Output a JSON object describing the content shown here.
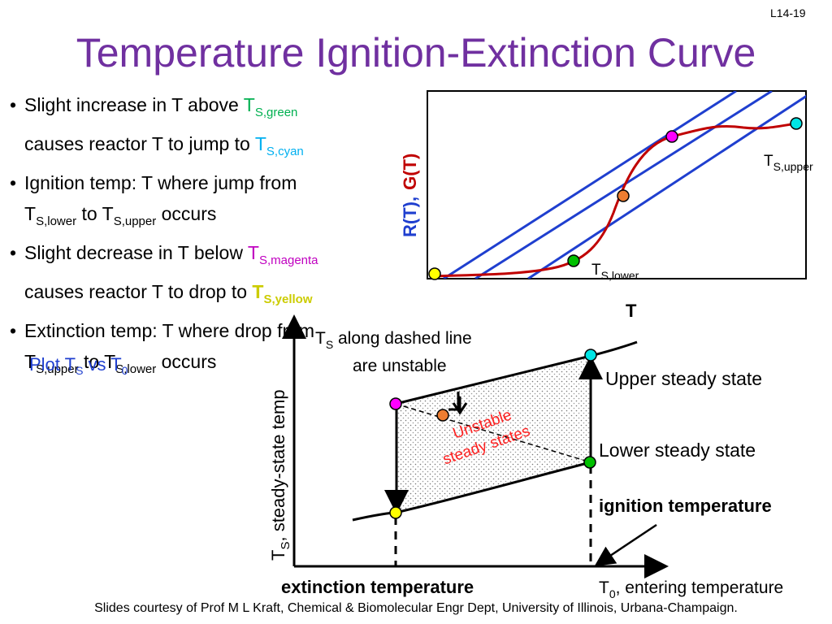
{
  "slide_number": "L14-19",
  "title": "Temperature Ignition-Extinction Curve",
  "bullets": {
    "b1_line1": "Slight increase in T above ",
    "b1_T": "T",
    "b1_sub": "S,green",
    "b1_line2": "causes reactor T to jump to ",
    "b1_T2": "T",
    "b1_sub2": "S,cyan",
    "b2_line1": "Ignition temp: T where jump from",
    "b2_T1": "T",
    "b2_sub1": "S,lower",
    "b2_to": " to T",
    "b2_sub2": "S,upper",
    "b2_end": " occurs",
    "b3_line1": "Slight decrease in T below ",
    "b3_T": "T",
    "b3_sub": "S,magenta",
    "b3_line2": "causes reactor T to drop to ",
    "b3_T2": "T",
    "b3_sub2": "S,yellow",
    "b4_line1": "Extinction temp: T where drop from",
    "b4_T1": "T",
    "b4_sub1": "S,upper",
    "b4_to": " to T",
    "b4_sub2": "S,lower",
    "b4_end": " occurs"
  },
  "plot_note": {
    "text": "Plot T",
    "sub1": "S",
    "vs": " vs T",
    "sub2": "0"
  },
  "top_graph": {
    "y_label_r": "R(T),",
    "y_label_g": "G(T)",
    "x_label": "T",
    "label_upper_T": "T",
    "label_upper_sub": "S,upper",
    "label_lower_T": "T",
    "label_lower_sub": "S,lower"
  },
  "bottom_graph": {
    "y_label": "T",
    "y_label_sub": "S",
    "y_label_rest": ", steady-state temp",
    "x_label_T": "T",
    "x_label_sub": "0",
    "x_label_rest": ", entering temperature",
    "dashed_note_line1_T": "T",
    "dashed_note_line1_sub": "S",
    "dashed_note_line1_rest": " along dashed line",
    "dashed_note_line2": "are unstable",
    "unstable_line1": "Unstable",
    "unstable_line2": "steady states",
    "upper_steady": "Upper steady state",
    "lower_steady": "Lower steady state",
    "ignition": "ignition temperature",
    "extinction": "extinction temperature"
  },
  "colors": {
    "title": "#7030a0",
    "line_blue": "#1f3fcf",
    "curve_red": "#c00000",
    "yellow": "#ffff00",
    "green": "#00c000",
    "orange": "#ed7d31",
    "magenta": "#ff00ff",
    "cyan": "#00e5e5"
  },
  "footer": "Slides courtesy of Prof M L Kraft, Chemical & Biomolecular Engr Dept, University of Illinois, Urbana-Champaign."
}
